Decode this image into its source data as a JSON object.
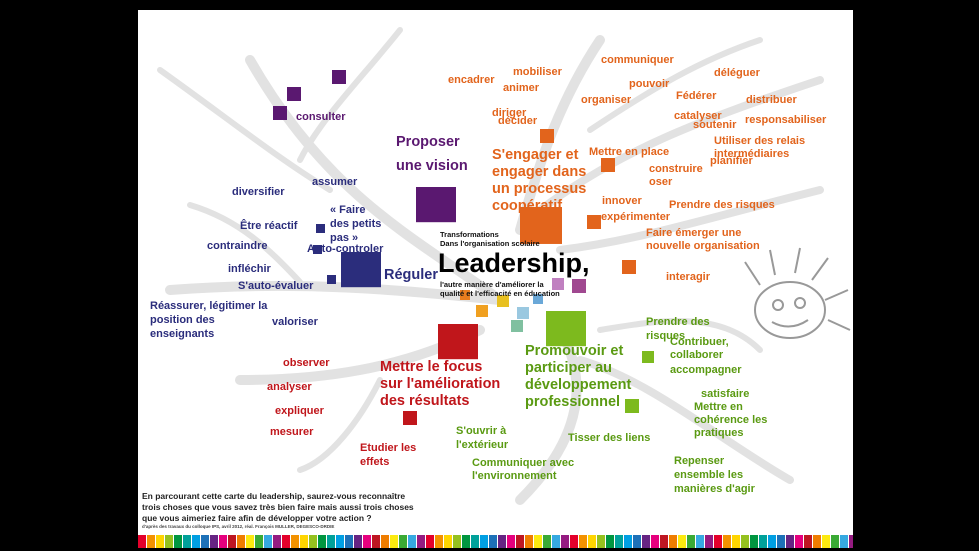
{
  "center": {
    "kicker": [
      "Transformations",
      "Dans l'organisation scolaire"
    ],
    "title": "Leadership,",
    "subtitle": [
      "l'autre manière d'améliorer la",
      "qualité et l'efficacité en éducation"
    ]
  },
  "branches": [
    {
      "color": "#5a1870",
      "label": [
        "Proposer",
        "une vision"
      ],
      "leaves": [
        [
          "consulter"
        ]
      ]
    },
    {
      "color": "#2b2d7c",
      "label": [
        "Réguler"
      ],
      "leaves": [
        [
          "diversifier"
        ],
        [
          "assumer"
        ],
        [
          "Être réactif"
        ],
        [
          "« Faire",
          "des petits",
          "pas »"
        ],
        [
          "contraindre"
        ],
        [
          "Auto-controler"
        ],
        [
          "infléchir"
        ],
        [
          "S'auto-évaluer"
        ],
        [
          "Réassurer, légitimer la",
          "position des",
          "enseignants"
        ],
        [
          "valoriser"
        ]
      ]
    },
    {
      "color": "#e2641c",
      "label": [
        "S'engager et",
        "engager dans",
        "un processus",
        "coopératif"
      ],
      "leaves": [
        [
          "encadrer"
        ],
        [
          "mobiliser"
        ],
        [
          "animer"
        ],
        [
          "communiquer"
        ],
        [
          "pouvoir"
        ],
        [
          "déléguer"
        ],
        [
          "diriger"
        ],
        [
          "organiser"
        ],
        [
          "Fédérer"
        ],
        [
          "distribuer"
        ],
        [
          "décider"
        ],
        [
          "catalyser"
        ],
        [
          "soutenir"
        ],
        [
          "responsabiliser"
        ],
        [
          "Mettre en place"
        ],
        [
          "Utiliser des relais",
          "intermédiaires"
        ],
        [
          "planifier"
        ],
        [
          "construire"
        ],
        [
          "oser"
        ],
        [
          "innover"
        ],
        [
          "expérimenter"
        ],
        [
          "Prendre des risques"
        ],
        [
          "Faire émerger une",
          "nouvelle organisation"
        ],
        [
          "interagir"
        ]
      ]
    },
    {
      "color": "#c0161b",
      "label": [
        "Mettre le focus",
        "sur l'amélioration",
        "des résultats"
      ],
      "leaves": [
        [
          "observer"
        ],
        [
          "analyser"
        ],
        [
          "expliquer"
        ],
        [
          "mesurer"
        ],
        [
          "Etudier les",
          "effets"
        ]
      ]
    },
    {
      "color": "#5a9a12",
      "label": [
        "Promouvoir et",
        "participer au",
        "développement",
        "professionnel"
      ],
      "leaves": [
        [
          "Prendre des",
          "risques"
        ],
        [
          "Contribuer,",
          "collaborer"
        ],
        [
          "accompagner"
        ],
        [
          "satisfaire"
        ],
        [
          "Mettre en",
          "cohérence les",
          "pratiques"
        ],
        [
          "S'ouvrir à",
          "l'extérieur"
        ],
        [
          "Tisser  des liens"
        ],
        [
          "Repenser",
          "ensemble les",
          "manières d'agir"
        ],
        [
          "Communiquer avec",
          "l'environnement"
        ]
      ]
    }
  ],
  "footer": [
    "En parcourant cette carte du leadership, saurez-vous reconnaître",
    "trois choses que vous savez très bien faire mais aussi trois choses",
    "que vous aimeriez faire afin de développer votre action ?"
  ],
  "credit": "d'après des travaux du colloque IPS, avril 2012, réal. François MULLER, DEGESCO-DRDIE"
}
